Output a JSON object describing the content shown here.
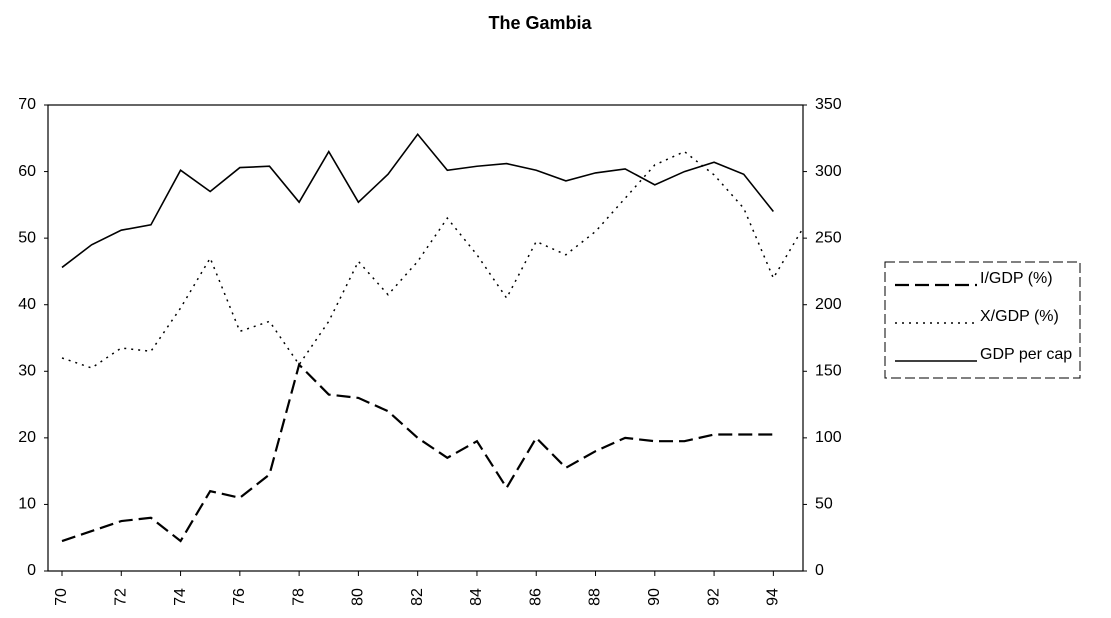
{
  "chart_data": {
    "type": "line",
    "title": "The Gambia",
    "x": [
      70,
      71,
      72,
      73,
      74,
      75,
      76,
      77,
      78,
      79,
      80,
      81,
      82,
      83,
      84,
      85,
      86,
      87,
      88,
      89,
      90,
      91,
      92,
      93,
      94,
      95
    ],
    "xlim": [
      70,
      95
    ],
    "xticks": [
      70,
      72,
      74,
      76,
      78,
      80,
      82,
      84,
      86,
      88,
      90,
      92,
      94
    ],
    "ylim": [
      0,
      70
    ],
    "yticks": [
      0,
      10,
      20,
      30,
      40,
      50,
      60,
      70
    ],
    "y2lim": [
      0,
      350
    ],
    "y2ticks": [
      0,
      50,
      100,
      150,
      200,
      250,
      300,
      350
    ],
    "grid": false,
    "legend": "right",
    "series": [
      {
        "name": "I/GDP (%)",
        "color": "#000000",
        "dash": "dashed",
        "values": [
          4.5,
          6,
          7.5,
          8,
          4.5,
          12,
          11,
          14.5,
          31,
          26.5,
          26,
          24,
          20,
          17,
          19.5,
          12.5,
          20,
          15.5,
          18,
          20,
          19.5,
          19.5,
          20.5,
          20.5,
          20.5,
          null
        ]
      },
      {
        "name": "X/GDP (%)",
        "color": "#000000",
        "dash": "dotted",
        "values": [
          32,
          30.5,
          33.5,
          33,
          39.5,
          47,
          36,
          37.5,
          31,
          37.5,
          46.5,
          41.5,
          46.5,
          53,
          47.5,
          41,
          49.5,
          47.5,
          51,
          56,
          61,
          63,
          59.5,
          54.5,
          44,
          51.5
        ]
      },
      {
        "name": "GDP per cap",
        "color": "#000000",
        "dash": "solid",
        "axis": "y2",
        "values": [
          228,
          245,
          256,
          260,
          301,
          285,
          303,
          304,
          277,
          315,
          277,
          298,
          328,
          301,
          304,
          306,
          301,
          293,
          299,
          302,
          290,
          300,
          307,
          298,
          270,
          null
        ]
      }
    ]
  }
}
